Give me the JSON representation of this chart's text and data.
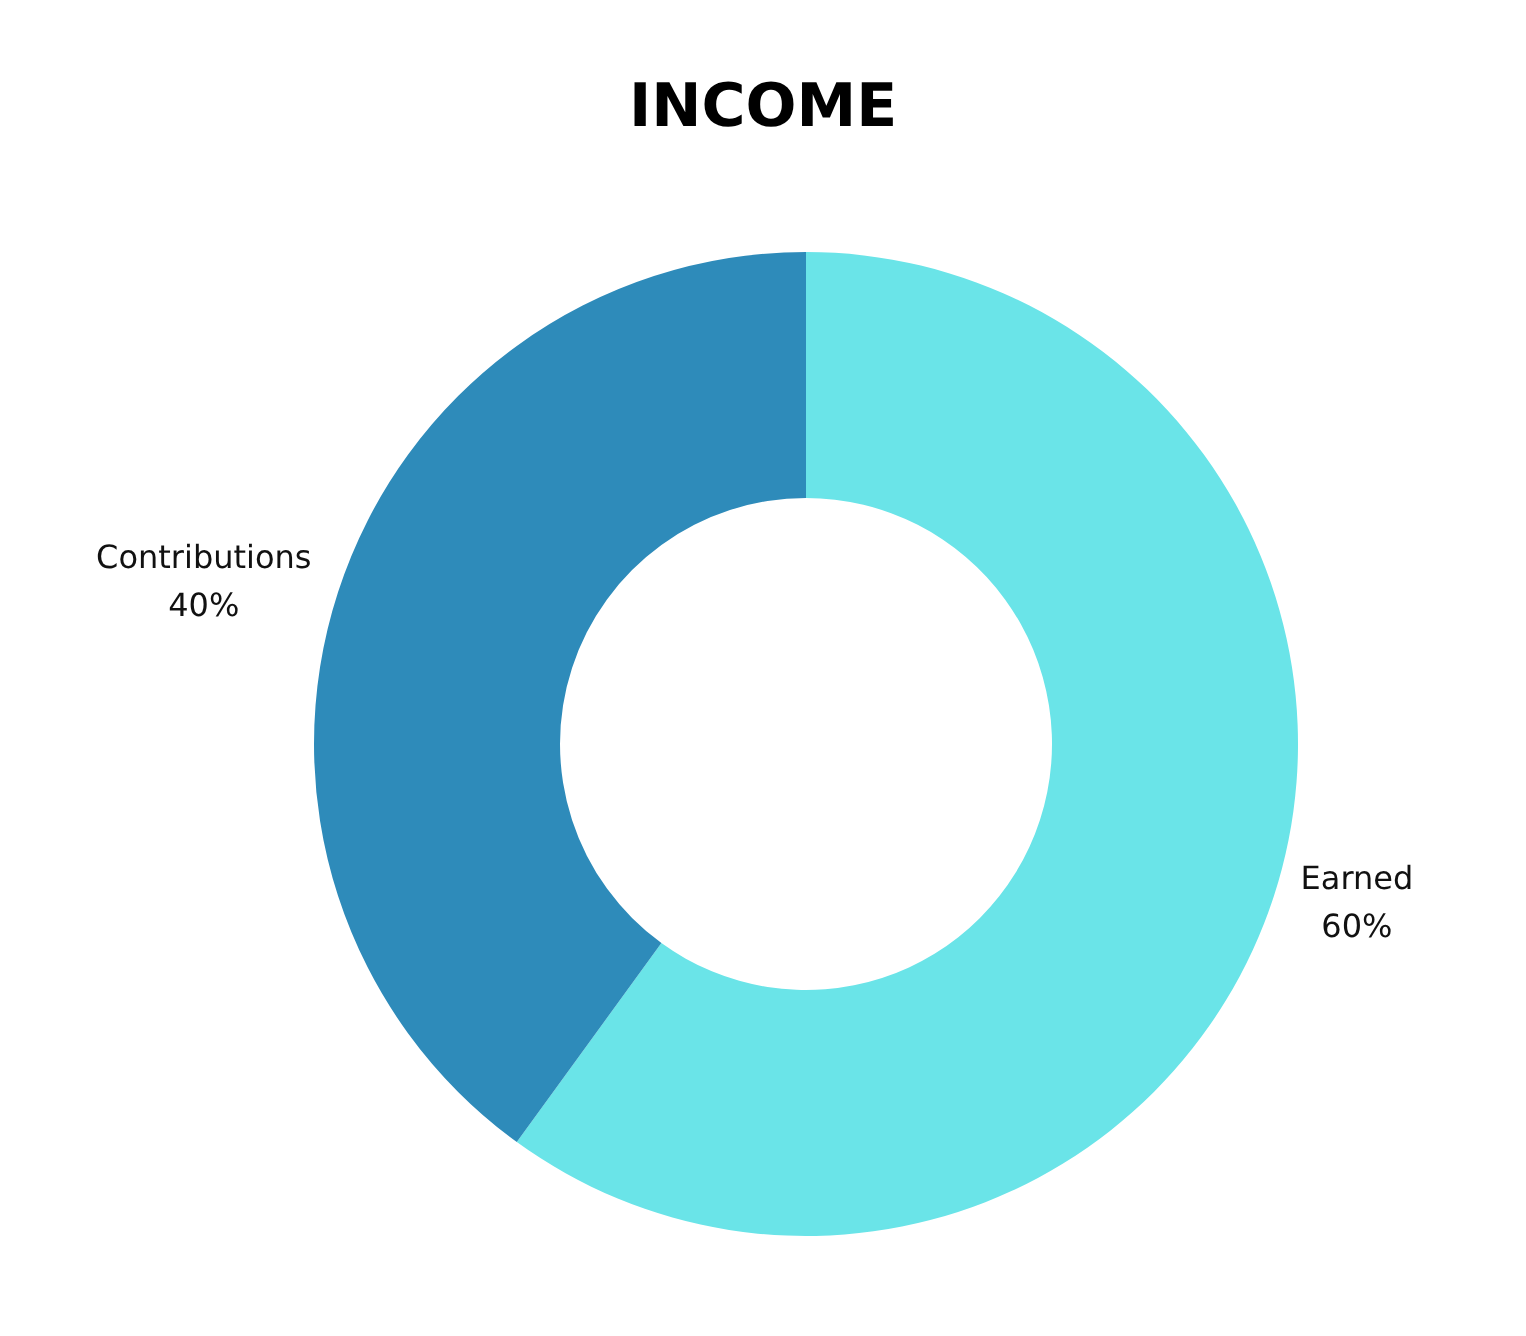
{
  "chart_data": {
    "type": "donut",
    "title": "INCOME",
    "categories": [
      "Earned",
      "Contributions"
    ],
    "values": [
      60,
      40
    ],
    "colors": [
      "#6ae4e8",
      "#2e8bba"
    ],
    "value_labels": [
      "60%",
      "40%"
    ],
    "legend": false
  }
}
